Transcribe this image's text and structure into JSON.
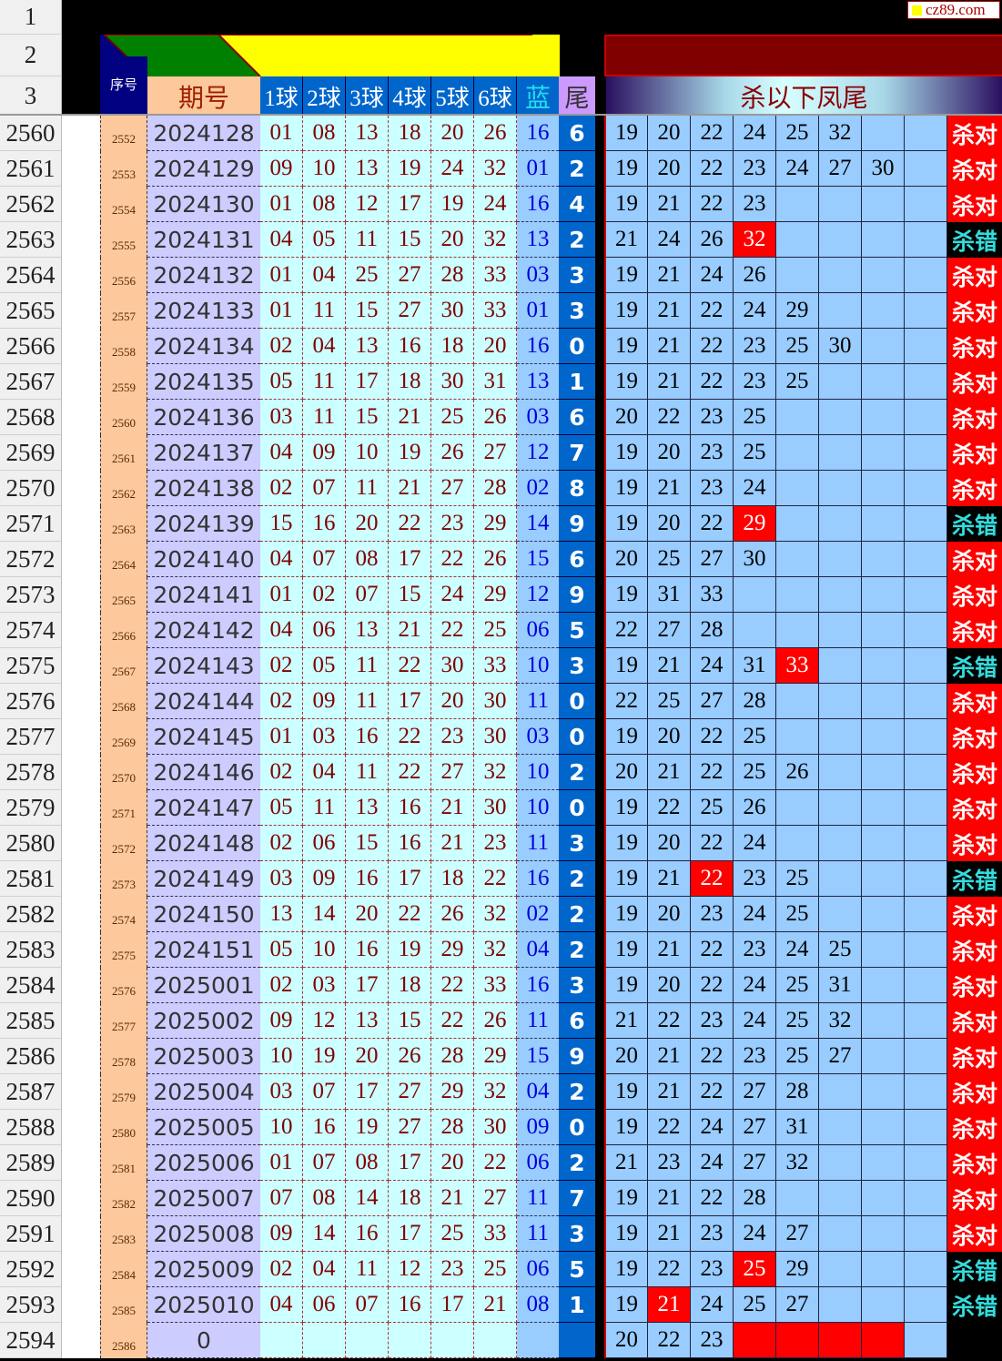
{
  "watermark": "cz89.com",
  "header": {
    "row_numbers": [
      "1",
      "2",
      "3"
    ],
    "seq_label": "序号",
    "issue_label": "期号",
    "ball_labels": [
      "1球",
      "2球",
      "3球",
      "4球",
      "5球",
      "6球"
    ],
    "blue_label": "蓝",
    "tail_label": "尾",
    "kill_title": "杀以下凤尾"
  },
  "colors": {
    "hit": "#ff0000",
    "verdict_ok_bg": "#ff0000",
    "verdict_bad_text": "#33dddd",
    "kill_bg": "#99ccff"
  },
  "rows": [
    {
      "n": "2560",
      "seq": "2552",
      "issue": "2024128",
      "balls": [
        "01",
        "08",
        "13",
        "18",
        "20",
        "26"
      ],
      "blue": "16",
      "tail": "6",
      "kills": [
        "19",
        "20",
        "22",
        "24",
        "25",
        "32"
      ],
      "verdict": "杀对",
      "hit": -1
    },
    {
      "n": "2561",
      "seq": "2553",
      "issue": "2024129",
      "balls": [
        "09",
        "10",
        "13",
        "19",
        "24",
        "32"
      ],
      "blue": "01",
      "tail": "2",
      "kills": [
        "19",
        "20",
        "22",
        "23",
        "24",
        "27",
        "30"
      ],
      "verdict": "杀对",
      "hit": -1
    },
    {
      "n": "2562",
      "seq": "2554",
      "issue": "2024130",
      "balls": [
        "01",
        "08",
        "12",
        "17",
        "19",
        "24"
      ],
      "blue": "16",
      "tail": "4",
      "kills": [
        "19",
        "21",
        "22",
        "23"
      ],
      "verdict": "杀对",
      "hit": -1
    },
    {
      "n": "2563",
      "seq": "2555",
      "issue": "2024131",
      "balls": [
        "04",
        "05",
        "11",
        "15",
        "20",
        "32"
      ],
      "blue": "13",
      "tail": "2",
      "kills": [
        "21",
        "24",
        "26",
        "32"
      ],
      "verdict": "杀错",
      "hit": 3
    },
    {
      "n": "2564",
      "seq": "2556",
      "issue": "2024132",
      "balls": [
        "01",
        "04",
        "25",
        "27",
        "28",
        "33"
      ],
      "blue": "03",
      "tail": "3",
      "kills": [
        "19",
        "21",
        "24",
        "26"
      ],
      "verdict": "杀对",
      "hit": -1
    },
    {
      "n": "2565",
      "seq": "2557",
      "issue": "2024133",
      "balls": [
        "01",
        "11",
        "15",
        "27",
        "30",
        "33"
      ],
      "blue": "01",
      "tail": "3",
      "kills": [
        "19",
        "21",
        "22",
        "24",
        "29"
      ],
      "verdict": "杀对",
      "hit": -1
    },
    {
      "n": "2566",
      "seq": "2558",
      "issue": "2024134",
      "balls": [
        "02",
        "04",
        "13",
        "16",
        "18",
        "20"
      ],
      "blue": "16",
      "tail": "0",
      "kills": [
        "19",
        "21",
        "22",
        "23",
        "25",
        "30"
      ],
      "verdict": "杀对",
      "hit": -1
    },
    {
      "n": "2567",
      "seq": "2559",
      "issue": "2024135",
      "balls": [
        "05",
        "11",
        "17",
        "18",
        "30",
        "31"
      ],
      "blue": "13",
      "tail": "1",
      "kills": [
        "19",
        "21",
        "22",
        "23",
        "25"
      ],
      "verdict": "杀对",
      "hit": -1
    },
    {
      "n": "2568",
      "seq": "2560",
      "issue": "2024136",
      "balls": [
        "03",
        "11",
        "15",
        "21",
        "25",
        "26"
      ],
      "blue": "03",
      "tail": "6",
      "kills": [
        "20",
        "22",
        "23",
        "25"
      ],
      "verdict": "杀对",
      "hit": -1
    },
    {
      "n": "2569",
      "seq": "2561",
      "issue": "2024137",
      "balls": [
        "04",
        "09",
        "10",
        "19",
        "26",
        "27"
      ],
      "blue": "12",
      "tail": "7",
      "kills": [
        "19",
        "20",
        "23",
        "25"
      ],
      "verdict": "杀对",
      "hit": -1
    },
    {
      "n": "2570",
      "seq": "2562",
      "issue": "2024138",
      "balls": [
        "02",
        "07",
        "11",
        "21",
        "27",
        "28"
      ],
      "blue": "02",
      "tail": "8",
      "kills": [
        "19",
        "21",
        "23",
        "24"
      ],
      "verdict": "杀对",
      "hit": -1
    },
    {
      "n": "2571",
      "seq": "2563",
      "issue": "2024139",
      "balls": [
        "15",
        "16",
        "20",
        "22",
        "23",
        "29"
      ],
      "blue": "14",
      "tail": "9",
      "kills": [
        "19",
        "20",
        "22",
        "29"
      ],
      "verdict": "杀错",
      "hit": 3
    },
    {
      "n": "2572",
      "seq": "2564",
      "issue": "2024140",
      "balls": [
        "04",
        "07",
        "08",
        "17",
        "22",
        "26"
      ],
      "blue": "15",
      "tail": "6",
      "kills": [
        "20",
        "25",
        "27",
        "30"
      ],
      "verdict": "杀对",
      "hit": -1
    },
    {
      "n": "2573",
      "seq": "2565",
      "issue": "2024141",
      "balls": [
        "01",
        "02",
        "07",
        "15",
        "24",
        "29"
      ],
      "blue": "12",
      "tail": "9",
      "kills": [
        "19",
        "31",
        "33"
      ],
      "verdict": "杀对",
      "hit": -1
    },
    {
      "n": "2574",
      "seq": "2566",
      "issue": "2024142",
      "balls": [
        "04",
        "06",
        "13",
        "21",
        "22",
        "25"
      ],
      "blue": "06",
      "tail": "5",
      "kills": [
        "22",
        "27",
        "28"
      ],
      "verdict": "杀对",
      "hit": -1
    },
    {
      "n": "2575",
      "seq": "2567",
      "issue": "2024143",
      "balls": [
        "02",
        "05",
        "11",
        "22",
        "30",
        "33"
      ],
      "blue": "10",
      "tail": "3",
      "kills": [
        "19",
        "21",
        "24",
        "31",
        "33"
      ],
      "verdict": "杀错",
      "hit": 4
    },
    {
      "n": "2576",
      "seq": "2568",
      "issue": "2024144",
      "balls": [
        "02",
        "09",
        "11",
        "17",
        "20",
        "30"
      ],
      "blue": "11",
      "tail": "0",
      "kills": [
        "22",
        "25",
        "27",
        "28"
      ],
      "verdict": "杀对",
      "hit": -1
    },
    {
      "n": "2577",
      "seq": "2569",
      "issue": "2024145",
      "balls": [
        "01",
        "03",
        "16",
        "22",
        "23",
        "30"
      ],
      "blue": "03",
      "tail": "0",
      "kills": [
        "19",
        "20",
        "22",
        "25"
      ],
      "verdict": "杀对",
      "hit": -1
    },
    {
      "n": "2578",
      "seq": "2570",
      "issue": "2024146",
      "balls": [
        "02",
        "04",
        "11",
        "22",
        "27",
        "32"
      ],
      "blue": "10",
      "tail": "2",
      "kills": [
        "20",
        "21",
        "22",
        "25",
        "26"
      ],
      "verdict": "杀对",
      "hit": -1
    },
    {
      "n": "2579",
      "seq": "2571",
      "issue": "2024147",
      "balls": [
        "05",
        "11",
        "13",
        "16",
        "21",
        "30"
      ],
      "blue": "10",
      "tail": "0",
      "kills": [
        "19",
        "22",
        "25",
        "26"
      ],
      "verdict": "杀对",
      "hit": -1
    },
    {
      "n": "2580",
      "seq": "2572",
      "issue": "2024148",
      "balls": [
        "02",
        "06",
        "15",
        "16",
        "21",
        "23"
      ],
      "blue": "11",
      "tail": "3",
      "kills": [
        "19",
        "20",
        "22",
        "24"
      ],
      "verdict": "杀对",
      "hit": -1
    },
    {
      "n": "2581",
      "seq": "2573",
      "issue": "2024149",
      "balls": [
        "03",
        "09",
        "16",
        "17",
        "18",
        "22"
      ],
      "blue": "16",
      "tail": "2",
      "kills": [
        "19",
        "21",
        "22",
        "23",
        "25"
      ],
      "verdict": "杀错",
      "hit": 2
    },
    {
      "n": "2582",
      "seq": "2574",
      "issue": "2024150",
      "balls": [
        "13",
        "14",
        "20",
        "22",
        "26",
        "32"
      ],
      "blue": "02",
      "tail": "2",
      "kills": [
        "19",
        "20",
        "23",
        "24",
        "25"
      ],
      "verdict": "杀对",
      "hit": -1
    },
    {
      "n": "2583",
      "seq": "2575",
      "issue": "2024151",
      "balls": [
        "05",
        "10",
        "16",
        "19",
        "29",
        "32"
      ],
      "blue": "04",
      "tail": "2",
      "kills": [
        "19",
        "21",
        "22",
        "23",
        "24",
        "25"
      ],
      "verdict": "杀对",
      "hit": -1
    },
    {
      "n": "2584",
      "seq": "2576",
      "issue": "2025001",
      "balls": [
        "02",
        "03",
        "17",
        "18",
        "22",
        "33"
      ],
      "blue": "16",
      "tail": "3",
      "kills": [
        "19",
        "20",
        "22",
        "24",
        "25",
        "31"
      ],
      "verdict": "杀对",
      "hit": -1
    },
    {
      "n": "2585",
      "seq": "2577",
      "issue": "2025002",
      "balls": [
        "09",
        "12",
        "13",
        "15",
        "22",
        "26"
      ],
      "blue": "11",
      "tail": "6",
      "kills": [
        "21",
        "22",
        "23",
        "24",
        "25",
        "32"
      ],
      "verdict": "杀对",
      "hit": -1
    },
    {
      "n": "2586",
      "seq": "2578",
      "issue": "2025003",
      "balls": [
        "10",
        "19",
        "20",
        "26",
        "28",
        "29"
      ],
      "blue": "15",
      "tail": "9",
      "kills": [
        "20",
        "21",
        "22",
        "23",
        "25",
        "27"
      ],
      "verdict": "杀对",
      "hit": -1
    },
    {
      "n": "2587",
      "seq": "2579",
      "issue": "2025004",
      "balls": [
        "03",
        "07",
        "17",
        "27",
        "29",
        "32"
      ],
      "blue": "04",
      "tail": "2",
      "kills": [
        "19",
        "21",
        "22",
        "27",
        "28"
      ],
      "verdict": "杀对",
      "hit": -1
    },
    {
      "n": "2588",
      "seq": "2580",
      "issue": "2025005",
      "balls": [
        "10",
        "16",
        "19",
        "27",
        "28",
        "30"
      ],
      "blue": "09",
      "tail": "0",
      "kills": [
        "19",
        "22",
        "24",
        "27",
        "31"
      ],
      "verdict": "杀对",
      "hit": -1
    },
    {
      "n": "2589",
      "seq": "2581",
      "issue": "2025006",
      "balls": [
        "01",
        "07",
        "08",
        "17",
        "20",
        "22"
      ],
      "blue": "06",
      "tail": "2",
      "kills": [
        "21",
        "23",
        "24",
        "27",
        "32"
      ],
      "verdict": "杀对",
      "hit": -1
    },
    {
      "n": "2590",
      "seq": "2582",
      "issue": "2025007",
      "balls": [
        "07",
        "08",
        "14",
        "18",
        "21",
        "27"
      ],
      "blue": "11",
      "tail": "7",
      "kills": [
        "19",
        "21",
        "22",
        "28"
      ],
      "verdict": "杀对",
      "hit": -1
    },
    {
      "n": "2591",
      "seq": "2583",
      "issue": "2025008",
      "balls": [
        "09",
        "14",
        "16",
        "17",
        "25",
        "33"
      ],
      "blue": "11",
      "tail": "3",
      "kills": [
        "19",
        "21",
        "23",
        "24",
        "27"
      ],
      "verdict": "杀对",
      "hit": -1
    },
    {
      "n": "2592",
      "seq": "2584",
      "issue": "2025009",
      "balls": [
        "02",
        "04",
        "11",
        "12",
        "23",
        "25"
      ],
      "blue": "06",
      "tail": "5",
      "kills": [
        "19",
        "22",
        "23",
        "25",
        "29"
      ],
      "verdict": "杀错",
      "hit": 3
    },
    {
      "n": "2593",
      "seq": "2585",
      "issue": "2025010",
      "balls": [
        "04",
        "06",
        "07",
        "16",
        "17",
        "21"
      ],
      "blue": "08",
      "tail": "1",
      "kills": [
        "19",
        "21",
        "24",
        "25",
        "27"
      ],
      "verdict": "杀错",
      "hit": 1
    },
    {
      "n": "2594",
      "seq": "2586",
      "issue": "0",
      "balls": [
        "",
        "",
        "",
        "",
        "",
        ""
      ],
      "blue": "",
      "tail": "",
      "kills": [
        "20",
        "22",
        "23"
      ],
      "verdict": "",
      "hit": -1,
      "pending": true
    }
  ]
}
